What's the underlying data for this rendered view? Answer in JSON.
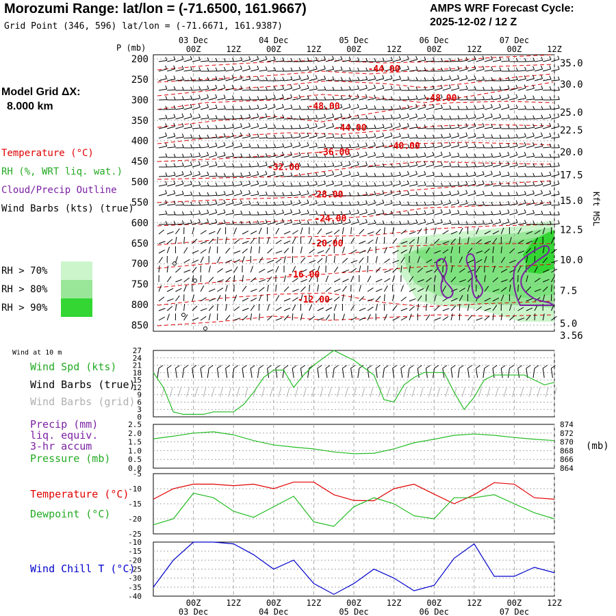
{
  "header": {
    "title": "Morozumi Range:  lat/lon = (-71.6500, 161.9667)",
    "subtitle": "Grid Point (346, 596) lat/lon = (-71.6671, 161.9387)",
    "cycle_line1": "AMPS WRF Forecast Cycle:",
    "cycle_line2": "2025-12-02 / 12  Z"
  },
  "model_grid": {
    "label": "Model Grid ΔX:",
    "value": "8.000 km"
  },
  "upper_legend": {
    "temperature": "Temperature (°C)",
    "rh": "RH (%, WRT liq. wat.)",
    "cloud": "Cloud/Precip Outline",
    "wind": "Wind Barbs (kts) (true)"
  },
  "rh_legend": [
    {
      "label": "RH > 70%",
      "color": "#ccf5cc"
    },
    {
      "label": "RH > 80%",
      "color": "#99e699"
    },
    {
      "label": "RH > 90%",
      "color": "#33d633"
    }
  ],
  "lower_legends": {
    "wind_at_10m": "Wind at 10 m",
    "wind_spd": "Wind Spd (kts)",
    "barbs_true": "Wind Barbs (true)",
    "barbs_grid": "Wind Barbs (grid)",
    "precip_line1": "Precip (mm)",
    "precip_line2": "liq. equiv.",
    "precip_line3": "3-hr accum",
    "pressure": "Pressure (mb)",
    "pressure_unit": "(mb)",
    "temperature": "Temperature (°C)",
    "dewpoint": "Dewpoint (°C)",
    "windchill": "Wind Chill T (°C)"
  },
  "axis": {
    "p_label": "P (mb)",
    "kft_label": "Kft MSL",
    "time_labels": [
      "00Z",
      "12Z",
      "00Z",
      "12Z",
      "00Z",
      "12Z",
      "00Z",
      "12Z",
      "00Z",
      "12Z"
    ],
    "time_hours": [
      12,
      24,
      36,
      48,
      60,
      72,
      84,
      96,
      108,
      120
    ],
    "date_labels": [
      "03 Dec",
      "04 Dec",
      "05 Dec",
      "06 Dec",
      "07 Dec"
    ],
    "date_hours": [
      12,
      36,
      60,
      84,
      108
    ],
    "x_range_hours": [
      0,
      120
    ]
  },
  "colors": {
    "temperature": "#e00000",
    "rh_speed": "#22bb22",
    "cloud": "#7a1fa2",
    "windchill": "#0000cc",
    "grid_barbs": "#b0b0b0",
    "grid": "#a8a8a8"
  },
  "chart_data": [
    {
      "type": "time-height",
      "title": "Temperature, RH, cloud outline and wind barbs",
      "ylabel": "P (mb)",
      "yrange": [
        865,
        190
      ],
      "pressure_levels": [
        200,
        250,
        300,
        350,
        400,
        450,
        500,
        550,
        600,
        650,
        700,
        750,
        800,
        850
      ],
      "height_kft": [
        {
          "p": 210,
          "label": "35.0"
        },
        {
          "p": 262,
          "label": "30.0"
        },
        {
          "p": 330,
          "label": "25.0"
        },
        {
          "p": 374,
          "label": "22.5"
        },
        {
          "p": 427,
          "label": "20.0"
        },
        {
          "p": 483,
          "label": "17.5"
        },
        {
          "p": 546,
          "label": "15.0"
        },
        {
          "p": 617,
          "label": "12.5"
        },
        {
          "p": 690,
          "label": "10.0"
        },
        {
          "p": 766,
          "label": "7.5"
        },
        {
          "p": 846,
          "label": "5.0"
        },
        {
          "p": 875,
          "label": "3.56"
        }
      ],
      "temperature_labels": [
        {
          "text": "-44.00",
          "hour": 69,
          "p": 225
        },
        {
          "text": "-48.00",
          "hour": 86,
          "p": 296
        },
        {
          "text": "-48.00",
          "hour": 51,
          "p": 316
        },
        {
          "text": "-44.00",
          "hour": 59,
          "p": 369
        },
        {
          "text": "-40.00",
          "hour": 75,
          "p": 413
        },
        {
          "text": "-36.00",
          "hour": 54,
          "p": 428
        },
        {
          "text": "-32.00",
          "hour": 39,
          "p": 465
        },
        {
          "text": "-28.00",
          "hour": 52,
          "p": 532
        },
        {
          "text": "-24.00",
          "hour": 53,
          "p": 590
        },
        {
          "text": "-20.00",
          "hour": 52,
          "p": 651
        },
        {
          "text": "-16.00",
          "hour": 45,
          "p": 727
        },
        {
          "text": "-12.00",
          "hour": 48,
          "p": 788
        }
      ]
    },
    {
      "type": "line",
      "title": "Wind at 10 m",
      "ylabel": "Wind Spd (kts)",
      "ylim": [
        0,
        27
      ],
      "yticks": [
        0,
        3,
        6,
        9,
        12,
        15,
        18,
        21,
        24,
        27
      ],
      "x": [
        0,
        3,
        6,
        9,
        12,
        15,
        18,
        21,
        24,
        27,
        30,
        33,
        36,
        39,
        42,
        45,
        48,
        51,
        54,
        57,
        60,
        63,
        66,
        69,
        72,
        75,
        78,
        81,
        84,
        87,
        90,
        93,
        96,
        99,
        102,
        105,
        108,
        111,
        114,
        117,
        120
      ],
      "series": [
        {
          "name": "Wind Spd (kts)",
          "values": [
            18,
            12,
            2,
            1,
            1,
            1,
            2,
            2,
            2,
            5,
            10,
            16,
            19,
            19,
            12,
            17,
            21,
            24,
            27,
            25,
            23,
            20,
            17,
            7,
            6,
            13,
            16,
            18,
            18,
            18,
            10,
            3,
            8,
            15,
            17,
            17,
            17,
            17,
            15,
            13,
            14
          ]
        }
      ]
    },
    {
      "type": "line",
      "title": "Precip and Pressure",
      "ylabel": "Precip (mm)",
      "ylim": [
        0,
        2.5
      ],
      "yticks": [
        0,
        0.5,
        1.0,
        1.5,
        2.0,
        2.5
      ],
      "y2label": "Pressure (mb)",
      "y2lim": [
        864,
        874
      ],
      "y2ticks": [
        864,
        866,
        868,
        870,
        872,
        874
      ],
      "x": [
        0,
        6,
        12,
        18,
        24,
        30,
        36,
        42,
        48,
        54,
        60,
        66,
        72,
        78,
        84,
        90,
        96,
        102,
        108,
        114,
        120
      ],
      "series": [
        {
          "name": "Pressure (mb)",
          "axis": "right",
          "values": [
            870.7,
            871.3,
            872.0,
            872.3,
            871.6,
            870.3,
            869.3,
            868.8,
            868.4,
            867.7,
            867.3,
            867.4,
            868.4,
            869.8,
            870.6,
            871.5,
            871.8,
            871.5,
            871.0,
            870.6,
            870.3
          ]
        }
      ]
    },
    {
      "type": "line",
      "title": "Temperature and Dewpoint",
      "ylim": [
        -25,
        -5
      ],
      "yticks": [
        -25,
        -20,
        -15,
        -10,
        -5
      ],
      "x": [
        0,
        6,
        12,
        18,
        24,
        30,
        36,
        42,
        48,
        54,
        60,
        66,
        72,
        78,
        84,
        90,
        96,
        102,
        108,
        114,
        120
      ],
      "series": [
        {
          "name": "Temperature (°C)",
          "values": [
            -13.5,
            -10,
            -8.5,
            -8.5,
            -9,
            -8.5,
            -10,
            -7.8,
            -7.8,
            -12,
            -13.9,
            -14,
            -10,
            -8.5,
            -11.8,
            -15,
            -12,
            -8,
            -8.5,
            -13,
            -13.5
          ]
        },
        {
          "name": "Dewpoint (°C)",
          "values": [
            -22,
            -20,
            -11.5,
            -13,
            -17.5,
            -19.5,
            -16,
            -12.5,
            -21,
            -22.5,
            -16,
            -13,
            -15,
            -19,
            -20,
            -13,
            -13,
            -12,
            -15,
            -18,
            -20
          ]
        }
      ]
    },
    {
      "type": "line",
      "title": "Wind Chill",
      "ylabel": "Wind Chill T (°C)",
      "ylim": [
        -40,
        -10
      ],
      "yticks": [
        -40,
        -35,
        -30,
        -25,
        -20,
        -15,
        -10
      ],
      "x": [
        0,
        6,
        12,
        18,
        24,
        30,
        36,
        42,
        48,
        54,
        60,
        66,
        72,
        78,
        84,
        90,
        96,
        102,
        108,
        114,
        120
      ],
      "series": [
        {
          "name": "Wind Chill T (°C)",
          "values": [
            -35,
            -20,
            -10,
            -10,
            -11,
            -17,
            -25,
            -20,
            -33,
            -39,
            -33,
            -25,
            -30,
            -37,
            -34,
            -19,
            -11,
            -29,
            -29,
            -24,
            -27
          ]
        }
      ]
    }
  ]
}
